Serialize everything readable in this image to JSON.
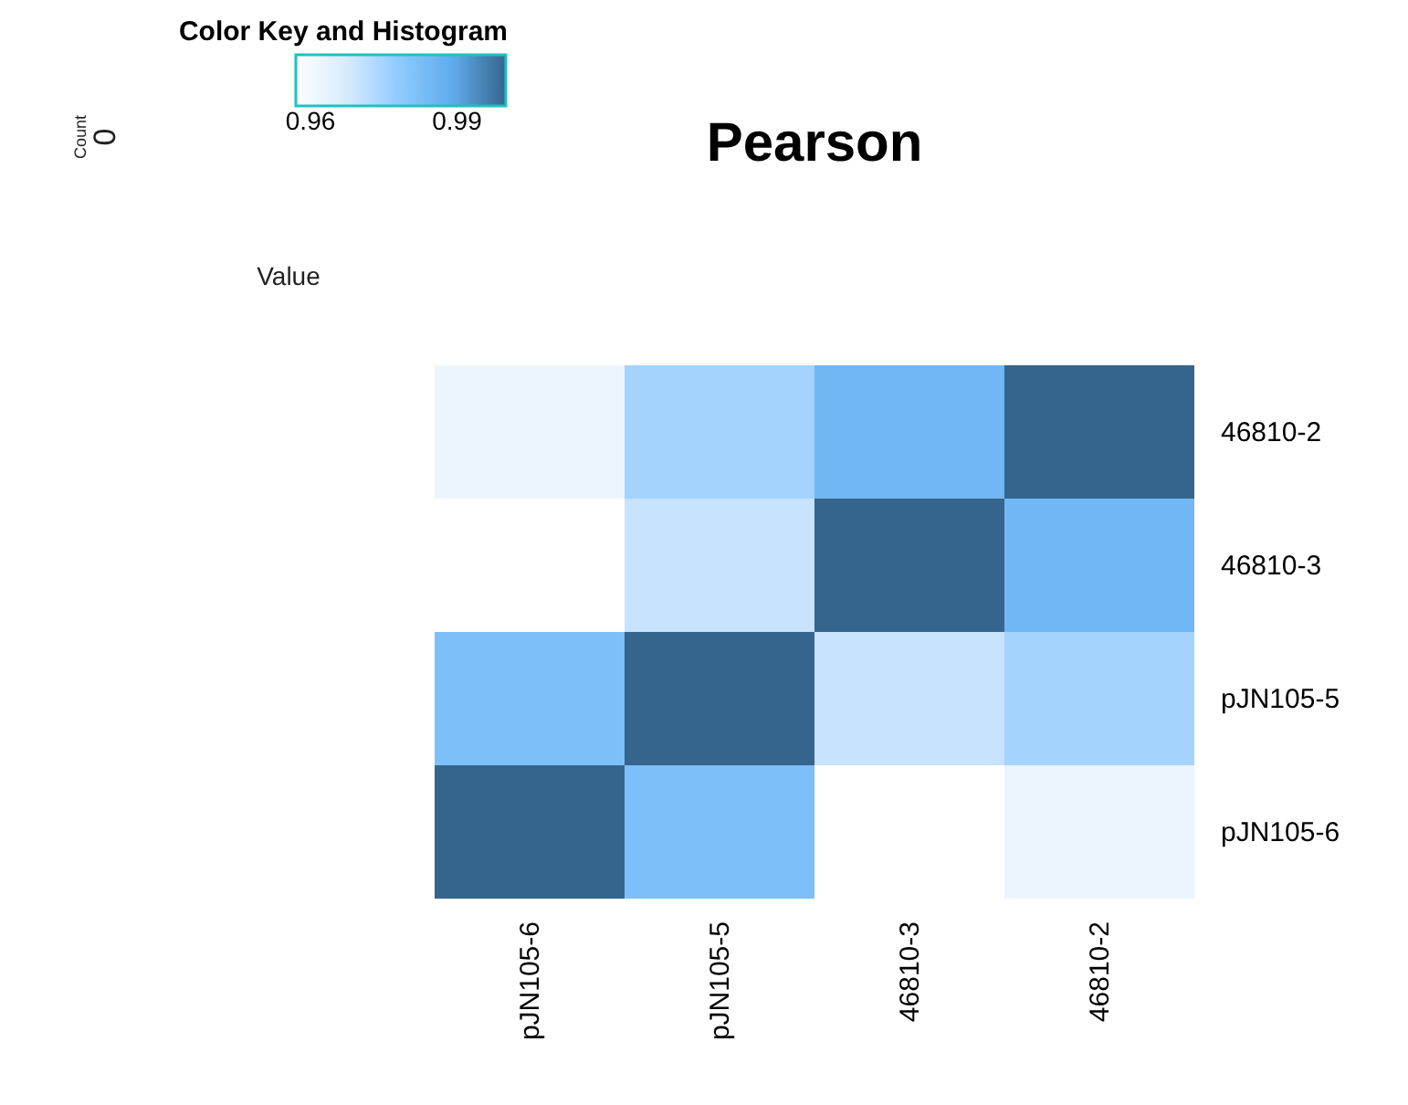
{
  "chart_data": {
    "type": "heatmap",
    "title": "Pearson",
    "categories": [
      "pJN105-6",
      "pJN105-5",
      "46810-3",
      "46810-2"
    ],
    "y_categories": [
      "46810-2",
      "46810-3",
      "pJN105-5",
      "pJN105-6"
    ],
    "cells": [
      [
        0.962,
        0.975,
        0.985,
        1.0
      ],
      [
        0.957,
        0.97,
        1.0,
        0.985
      ],
      [
        0.982,
        1.0,
        0.97,
        0.975
      ],
      [
        1.0,
        0.982,
        0.957,
        0.962
      ]
    ],
    "clim": [
      0.957,
      1.0
    ],
    "cticks": [
      0.96,
      0.99
    ],
    "colors": [
      "#ffffff",
      "#d6eafc",
      "#8cc9ff",
      "#5eabeb",
      "#35658c"
    ],
    "legend_title": "Color Key and Histogram",
    "clabel": "Value",
    "annotations": [
      "Count",
      "0"
    ]
  }
}
